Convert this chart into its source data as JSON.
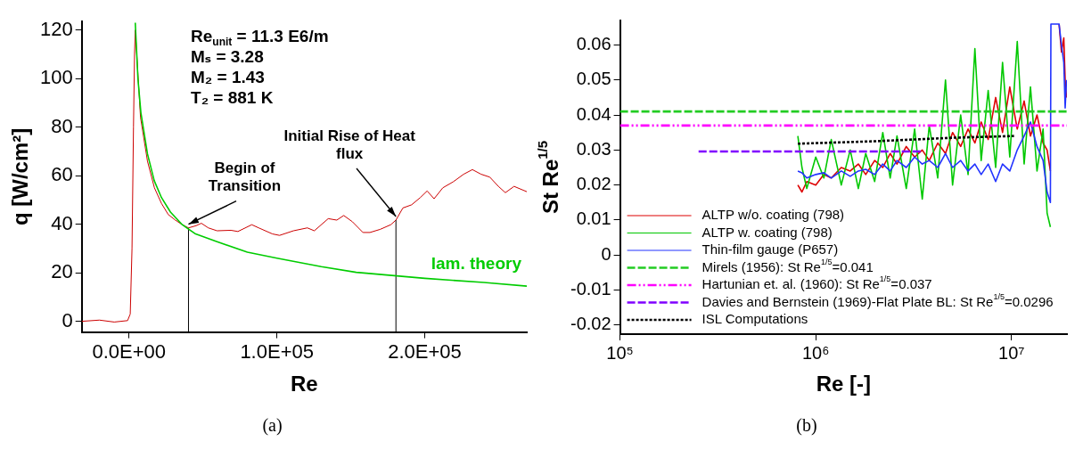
{
  "chart_data": [
    {
      "type": "line",
      "subtitle": "(a)",
      "xlabel": "Re",
      "ylabel": "q [W/cm²]",
      "xlim": [
        -32000,
        269000
      ],
      "ylim": [
        -4.4,
        123.5
      ],
      "xticks": [
        {
          "value": 0,
          "label": "0.0E+00"
        },
        {
          "value": 100000,
          "label": "1.0E+05"
        },
        {
          "value": 200000,
          "label": "2.0E+05"
        }
      ],
      "yticks": [
        0,
        20,
        40,
        60,
        80,
        100,
        120
      ],
      "grid": false,
      "legend": false,
      "annotations": [
        "Re$_{unit}$ = 11.3 E6/m",
        "Mₛ = 3.28",
        "M₂ = 1.43",
        "T₂ = 881 K",
        {
          "text": "Begin of Transition",
          "x": 40200,
          "y": 38.5
        },
        {
          "text": "Initial Rise of Heat flux",
          "x": 180500,
          "y": 41.7
        }
      ],
      "series": [
        {
          "color": "#cc0000",
          "x": [
            -32000,
            -20000,
            -10000,
            -1000,
            800,
            2000,
            3000,
            3700,
            4200,
            7750,
            12450,
            17150,
            21900,
            26500,
            31300,
            36000,
            40200,
            45350,
            48900,
            53600,
            59500,
            68900,
            73600,
            83000,
            87700,
            97000,
            101800,
            111200,
            120600,
            125300,
            134700,
            140500,
            145200,
            151100,
            158200,
            162900,
            169900,
            177000,
            180500,
            185200,
            191100,
            197000,
            201600,
            206300,
            212200,
            219300,
            226300,
            232200,
            238100,
            244000,
            249800,
            254500,
            260400,
            269000
          ],
          "values": [
            0,
            0.5,
            -0.3,
            0.3,
            3,
            30,
            80,
            110,
            120,
            84,
            66,
            55,
            48.6,
            44,
            41.7,
            39.8,
            38.5,
            39.4,
            40.4,
            38.5,
            37.3,
            37.5,
            37,
            39.8,
            38.5,
            36,
            35.4,
            37.3,
            38.5,
            37.3,
            42.3,
            41.7,
            43.6,
            41,
            36.6,
            36.6,
            37.9,
            39.8,
            41.7,
            46.7,
            48,
            51,
            53.7,
            50.5,
            55,
            57.5,
            60.6,
            62.5,
            60.6,
            59.4,
            55.6,
            53,
            55.6,
            53.4
          ]
        },
        {
          "color": "#000000",
          "x": [
            40200,
            40200
          ],
          "values": [
            -4.4,
            38.5
          ]
        },
        {
          "color": "#000000",
          "x": [
            180500,
            180500
          ],
          "values": [
            -4.4,
            41.7
          ]
        },
        {
          "name": "lam. theory",
          "color": "#00cc00",
          "x": [
            4200,
            6000,
            8000,
            12450,
            17000,
            21900,
            28000,
            36000,
            45000,
            59500,
            80000,
            100000,
            130000,
            153600,
            200000,
            240000,
            269000
          ],
          "values": [
            123,
            100,
            86,
            69,
            58,
            51,
            45,
            39.8,
            36,
            32.8,
            28.5,
            26,
            22.5,
            20.2,
            17.7,
            16,
            14.5
          ]
        }
      ]
    },
    {
      "type": "line",
      "subtitle": "(b)",
      "xlabel": "Re [-]",
      "ylabel": "St Re$^{1/5}$",
      "log": "x",
      "xlim": [
        100000,
        19200000
      ],
      "ylim": [
        -0.0226,
        0.067
      ],
      "xticks": [
        {
          "value": 100000,
          "label": "10⁵"
        },
        {
          "value": 1000000,
          "label": "10⁶"
        },
        {
          "value": 10000000,
          "label": "10⁷"
        }
      ],
      "yticks": [
        -0.02,
        -0.01,
        0,
        0.01,
        0.02,
        0.03,
        0.04,
        0.05,
        0.06
      ],
      "grid": false,
      "legend": "bottom left",
      "series": [
        {
          "name": "ALTP w/o. coating (798)",
          "color": "#dd0000",
          "line_style": "solid",
          "x": [
            810000,
            850000,
            900000,
            1000000,
            1100000,
            1200000,
            1350000,
            1500000,
            1650000,
            1800000,
            2000000,
            2200000,
            2400000,
            2600000,
            2900000,
            3200000,
            3500000,
            3800000,
            4200000,
            4600000,
            5000000,
            5500000,
            6000000,
            6500000,
            7000000,
            7600000,
            8300000,
            9000000,
            9800000,
            10700000,
            11600000,
            12500000,
            13500000,
            14500000,
            15200000,
            15800000,
            15900000,
            17500000,
            18000000,
            18500000,
            18800000,
            19100000
          ],
          "values": [
            0.02,
            0.018,
            0.021,
            0.02,
            0.023,
            0.022,
            0.025,
            0.024,
            0.026,
            0.023,
            0.027,
            0.025,
            0.029,
            0.026,
            0.031,
            0.028,
            0.03,
            0.027,
            0.032,
            0.029,
            0.035,
            0.031,
            0.036,
            0.032,
            0.038,
            0.033,
            0.045,
            0.035,
            0.048,
            0.036,
            0.044,
            0.034,
            0.04,
            0.032,
            0.03,
            0.024,
            null,
            0.066,
            0.058,
            0.062,
            0.05,
            0.045
          ]
        },
        {
          "name": "ALTP w. coating (798)",
          "color": "#00c800",
          "line_style": "solid",
          "x": [
            810000,
            850000,
            900000,
            1000000,
            1100000,
            1200000,
            1350000,
            1500000,
            1650000,
            1800000,
            2000000,
            2200000,
            2400000,
            2600000,
            2900000,
            3200000,
            3500000,
            3800000,
            4200000,
            4600000,
            5000000,
            5500000,
            6000000,
            6500000,
            7000000,
            7600000,
            8300000,
            9000000,
            9800000,
            10700000,
            11600000,
            12500000,
            13500000,
            14500000,
            15200000,
            15800000
          ],
          "values": [
            0.034,
            0.025,
            0.019,
            0.028,
            0.022,
            0.033,
            0.02,
            0.03,
            0.019,
            0.029,
            0.021,
            0.035,
            0.022,
            0.034,
            0.019,
            0.036,
            0.016,
            0.037,
            0.022,
            0.05,
            0.02,
            0.04,
            0.023,
            0.059,
            0.027,
            0.047,
            0.025,
            0.055,
            0.028,
            0.061,
            0.026,
            0.048,
            0.024,
            0.036,
            0.012,
            0.008
          ]
        },
        {
          "name": "Thin-film gauge (P657)",
          "color": "#2233ff",
          "line_style": "solid",
          "x": [
            810000,
            850000,
            900000,
            1000000,
            1100000,
            1200000,
            1350000,
            1500000,
            1650000,
            1800000,
            2000000,
            2200000,
            2400000,
            2600000,
            2900000,
            3200000,
            3500000,
            3800000,
            4200000,
            4600000,
            5000000,
            5500000,
            6000000,
            6500000,
            7000000,
            7600000,
            8300000,
            9000000,
            9800000,
            10700000,
            11600000,
            12500000,
            13500000,
            14500000,
            15200000,
            15800000,
            15900000,
            17500000,
            18000000,
            18500000,
            18800000,
            19100000
          ],
          "values": [
            0.024,
            0.0235,
            0.022,
            0.023,
            0.0235,
            0.022,
            0.024,
            0.0225,
            0.024,
            0.0245,
            0.023,
            0.026,
            0.024,
            0.027,
            0.025,
            0.028,
            0.026,
            0.027,
            0.025,
            0.029,
            0.025,
            0.027,
            0.024,
            0.026,
            0.023,
            0.026,
            0.021,
            0.026,
            0.024,
            0.03,
            0.034,
            0.038,
            0.031,
            0.027,
            0.018,
            0.015,
            0.066,
            0.066,
            0.06,
            0.055,
            0.042,
            0.05
          ]
        },
        {
          "name": "Mirels (1956): St Re$^{1/5}$=0.041",
          "color": "#22cc22",
          "line_style": "dashed",
          "x": [
            100000,
            19200000
          ],
          "values": [
            0.041,
            0.041
          ]
        },
        {
          "name": "Hartunian et. al. (1960): St Re$^{1/5}$=0.037",
          "color": "#ff00ff",
          "line_style": "dashdot",
          "x": [
            100000,
            19200000
          ],
          "values": [
            0.037,
            0.037
          ]
        },
        {
          "name": "Davies and Bernstein (1969)-Flat Plate BL: St Re$^{1/5}$=0.0296",
          "color": "#8000ff",
          "line_style": "dashed",
          "x": [
            252000,
            3460000
          ],
          "values": [
            0.0296,
            0.0296
          ]
        },
        {
          "name": "ISL Computations",
          "color": "#000000",
          "line_style": "dotted",
          "x": [
            810000,
            2000000,
            5000000,
            10300000
          ],
          "values": [
            0.0318,
            0.0325,
            0.0335,
            0.034
          ]
        }
      ]
    }
  ]
}
